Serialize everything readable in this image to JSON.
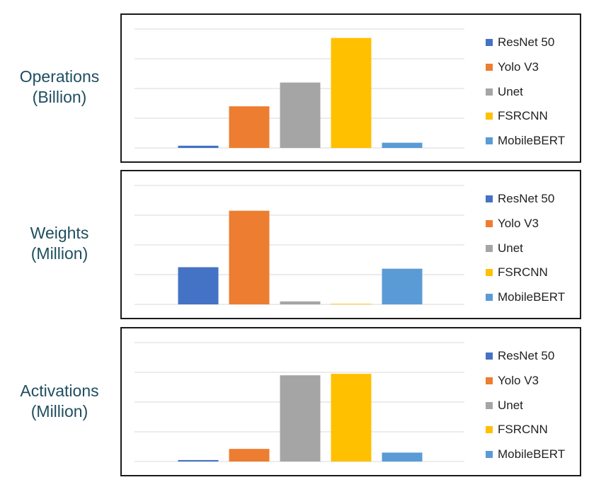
{
  "charts_meta": [
    {
      "label_line1": "Operations",
      "label_line2": "(Billion)"
    },
    {
      "label_line1": "Weights",
      "label_line2": "(Million)"
    },
    {
      "label_line1": "Activations",
      "label_line2": "(Million)"
    }
  ],
  "legend": {
    "items": [
      {
        "label": "ResNet 50",
        "color": "#4472c4"
      },
      {
        "label": "Yolo V3",
        "color": "#ed7d31"
      },
      {
        "label": "Unet",
        "color": "#a5a5a5"
      },
      {
        "label": "FSRCNN",
        "color": "#ffc000"
      },
      {
        "label": "MobileBERT",
        "color": "#5b9bd5"
      }
    ]
  },
  "chart_data": [
    {
      "type": "bar",
      "ylabel": "Operations (Billion)",
      "categories": [
        "ResNet 50",
        "Yolo V3",
        "Unet",
        "FSRCNN",
        "MobileBERT"
      ],
      "values": [
        1.5,
        28,
        44,
        74,
        3.5
      ],
      "ylim": [
        0,
        80
      ],
      "grid": true,
      "legend_position": "right",
      "colors": [
        "#4472c4",
        "#ed7d31",
        "#a5a5a5",
        "#ffc000",
        "#5b9bd5"
      ]
    },
    {
      "type": "bar",
      "ylabel": "Weights (Million)",
      "categories": [
        "ResNet 50",
        "Yolo V3",
        "Unet",
        "FSRCNN",
        "MobileBERT"
      ],
      "values": [
        25,
        63,
        2,
        0.4,
        24
      ],
      "ylim": [
        0,
        80
      ],
      "grid": true,
      "legend_position": "right",
      "colors": [
        "#4472c4",
        "#ed7d31",
        "#a5a5a5",
        "#ffc000",
        "#5b9bd5"
      ]
    },
    {
      "type": "bar",
      "ylabel": "Activations (Million)",
      "categories": [
        "ResNet 50",
        "Yolo V3",
        "Unet",
        "FSRCNN",
        "MobileBERT"
      ],
      "values": [
        1,
        8.5,
        58,
        59,
        6
      ],
      "ylim": [
        0,
        80
      ],
      "grid": true,
      "legend_position": "right",
      "colors": [
        "#4472c4",
        "#ed7d31",
        "#a5a5a5",
        "#ffc000",
        "#5b9bd5"
      ]
    }
  ]
}
